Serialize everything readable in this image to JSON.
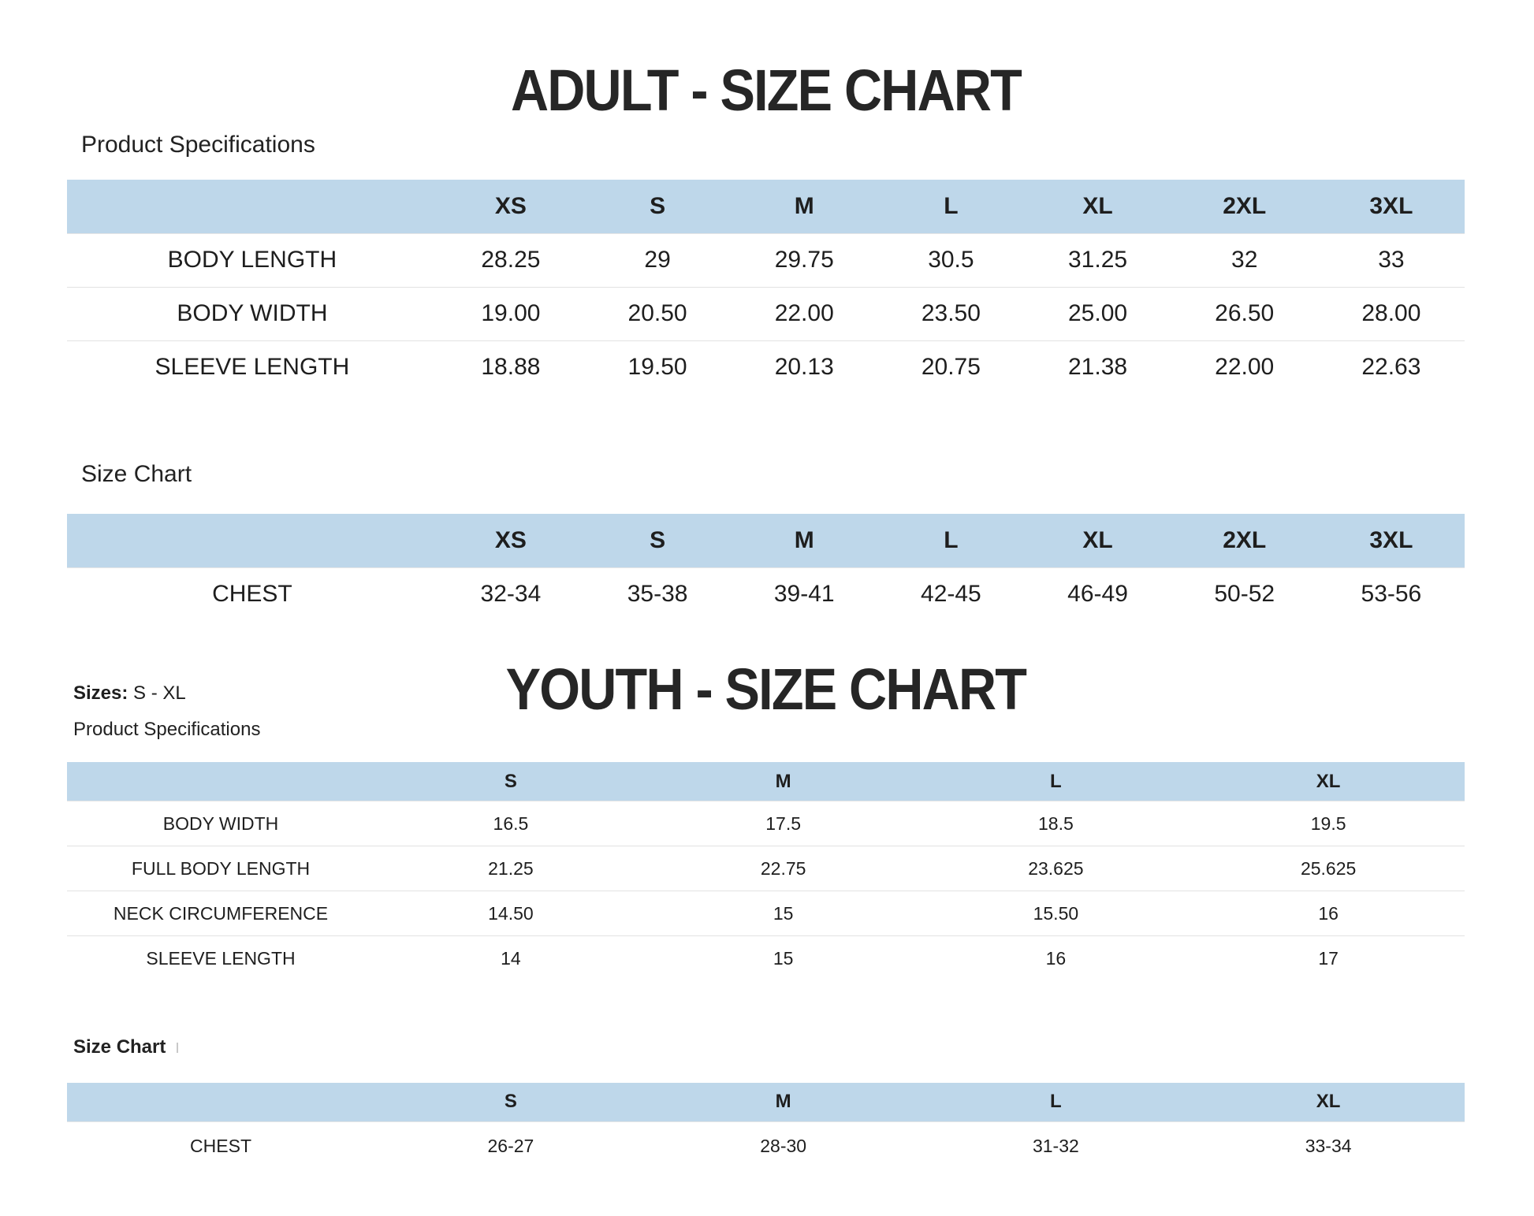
{
  "theme": {
    "header_bg": "#bed7ea",
    "text_color": "#1e1e1e",
    "row_divider": "#e2e2e2"
  },
  "adult": {
    "title": "ADULT - SIZE CHART",
    "spec_label": "Product Specifications",
    "spec_table": {
      "columns": [
        "XS",
        "S",
        "M",
        "L",
        "XL",
        "2XL",
        "3XL"
      ],
      "rows": [
        {
          "label": "BODY LENGTH",
          "values": [
            "28.25",
            "29",
            "29.75",
            "30.5",
            "31.25",
            "32",
            "33"
          ]
        },
        {
          "label": "BODY WIDTH",
          "values": [
            "19.00",
            "20.50",
            "22.00",
            "23.50",
            "25.00",
            "26.50",
            "28.00"
          ]
        },
        {
          "label": "SLEEVE LENGTH",
          "values": [
            "18.88",
            "19.50",
            "20.13",
            "20.75",
            "21.38",
            "22.00",
            "22.63"
          ]
        }
      ]
    },
    "size_chart_label": "Size Chart",
    "size_table": {
      "columns": [
        "XS",
        "S",
        "M",
        "L",
        "XL",
        "2XL",
        "3XL"
      ],
      "rows": [
        {
          "label": "CHEST",
          "values": [
            "32-34",
            "35-38",
            "39-41",
            "42-45",
            "46-49",
            "50-52",
            "53-56"
          ]
        }
      ]
    }
  },
  "youth": {
    "title": "YOUTH - SIZE CHART",
    "sizes_label": "Sizes:",
    "sizes_value": "S - XL",
    "spec_label": "Product Specifications",
    "spec_table": {
      "columns": [
        "S",
        "M",
        "L",
        "XL"
      ],
      "rows": [
        {
          "label": "BODY WIDTH",
          "values": [
            "16.5",
            "17.5",
            "18.5",
            "19.5"
          ]
        },
        {
          "label": "FULL BODY LENGTH",
          "values": [
            "21.25",
            "22.75",
            "23.625",
            "25.625"
          ]
        },
        {
          "label": "NECK CIRCUMFERENCE",
          "values": [
            "14.50",
            "15",
            "15.50",
            "16"
          ]
        },
        {
          "label": "SLEEVE LENGTH",
          "values": [
            "14",
            "15",
            "16",
            "17"
          ]
        }
      ]
    },
    "size_chart_label": "Size Chart",
    "size_table": {
      "columns": [
        "S",
        "M",
        "L",
        "XL"
      ],
      "rows": [
        {
          "label": "CHEST",
          "values": [
            "26-27",
            "28-30",
            "31-32",
            "33-34"
          ]
        }
      ]
    }
  }
}
